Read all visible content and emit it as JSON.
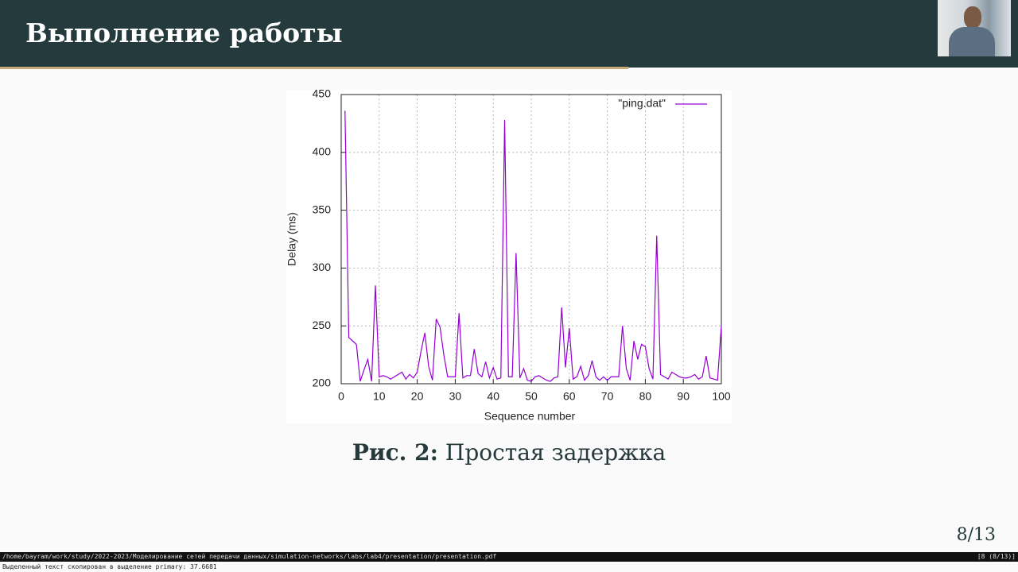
{
  "header": {
    "title": "Выполнение работы"
  },
  "figure": {
    "label": "Рис. 2:",
    "caption": "Простая задержка"
  },
  "footer": {
    "page": "8/13"
  },
  "status_bar": {
    "path": "/home/bayram/work/study/2022-2023/Моделирование сетей передачи данных/simulation-networks/labs/lab4/presentation/presentation.pdf",
    "page": "[8 (8/13)]",
    "message": "Выделенный текст скопирован в выделение primary: 37.6681"
  },
  "chart_data": {
    "type": "line",
    "xlabel": "Sequence number",
    "ylabel": "Delay (ms)",
    "x": [
      1,
      2,
      3,
      4,
      5,
      6,
      7,
      8,
      9,
      10,
      11,
      12,
      13,
      14,
      15,
      16,
      17,
      18,
      19,
      20,
      21,
      22,
      23,
      24,
      25,
      26,
      27,
      28,
      29,
      30,
      31,
      32,
      33,
      34,
      35,
      36,
      37,
      38,
      39,
      40,
      41,
      42,
      43,
      44,
      45,
      46,
      47,
      48,
      49,
      50,
      51,
      52,
      53,
      54,
      55,
      56,
      57,
      58,
      59,
      60,
      61,
      62,
      63,
      64,
      65,
      66,
      67,
      68,
      69,
      70,
      71,
      72,
      73,
      74,
      75,
      76,
      77,
      78,
      79,
      80,
      81,
      82,
      83,
      84,
      85,
      86,
      87,
      88,
      89,
      90,
      91,
      92,
      93,
      94,
      95,
      96,
      97,
      98,
      99,
      100
    ],
    "series": [
      {
        "name": "\"ping.dat\"",
        "color": "#9400d3",
        "values": [
          436,
          240,
          237,
          234,
          202,
          212,
          221,
          202,
          285,
          206,
          207,
          206,
          204,
          206,
          208,
          210,
          204,
          208,
          205,
          210,
          228,
          244,
          215,
          203,
          256,
          249,
          225,
          206,
          206,
          206,
          261,
          205,
          207,
          207,
          230,
          209,
          206,
          219,
          205,
          214,
          204,
          205,
          428,
          206,
          206,
          313,
          205,
          213,
          203,
          202,
          206,
          207,
          205,
          203,
          202,
          205,
          206,
          266,
          214,
          248,
          204,
          206,
          215,
          203,
          207,
          220,
          206,
          203,
          206,
          203,
          206,
          206,
          206,
          250,
          213,
          203,
          237,
          221,
          234,
          232,
          213,
          204,
          328,
          208,
          206,
          204,
          210,
          208,
          206,
          205,
          205,
          206,
          208,
          204,
          206,
          224,
          205,
          204,
          203,
          250
        ]
      }
    ],
    "xlim": [
      0,
      100
    ],
    "xticks": [
      0,
      10,
      20,
      30,
      40,
      50,
      60,
      70,
      80,
      90,
      100
    ],
    "ylim": [
      200,
      450
    ],
    "yticks": [
      200,
      250,
      300,
      350,
      400,
      450
    ],
    "grid": true,
    "legend": "top-right"
  }
}
